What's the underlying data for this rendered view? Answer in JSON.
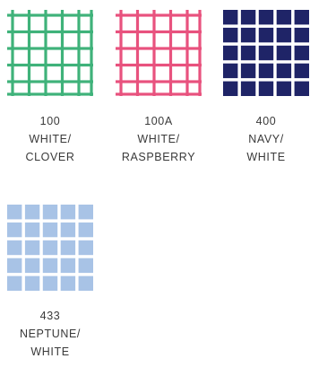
{
  "swatches": [
    {
      "number": "100",
      "color_line1": "WHITE/",
      "color_line2": "CLOVER",
      "pattern": "windowpane",
      "background": "#ffffff",
      "line_color": "#3fb27a"
    },
    {
      "number": "100A",
      "color_line1": "WHITE/",
      "color_line2": "RASPBERRY",
      "pattern": "windowpane",
      "background": "#ffffff",
      "line_color": "#e8527e"
    },
    {
      "number": "400",
      "color_line1": "NAVY/",
      "color_line2": "WHITE",
      "pattern": "block-check",
      "background": "#ffffff",
      "line_color": "#1f2467"
    },
    {
      "number": "433",
      "color_line1": "NEPTUNE/",
      "color_line2": "WHITE",
      "pattern": "block-check",
      "background": "#ffffff",
      "line_color": "#a8c3e6"
    }
  ]
}
